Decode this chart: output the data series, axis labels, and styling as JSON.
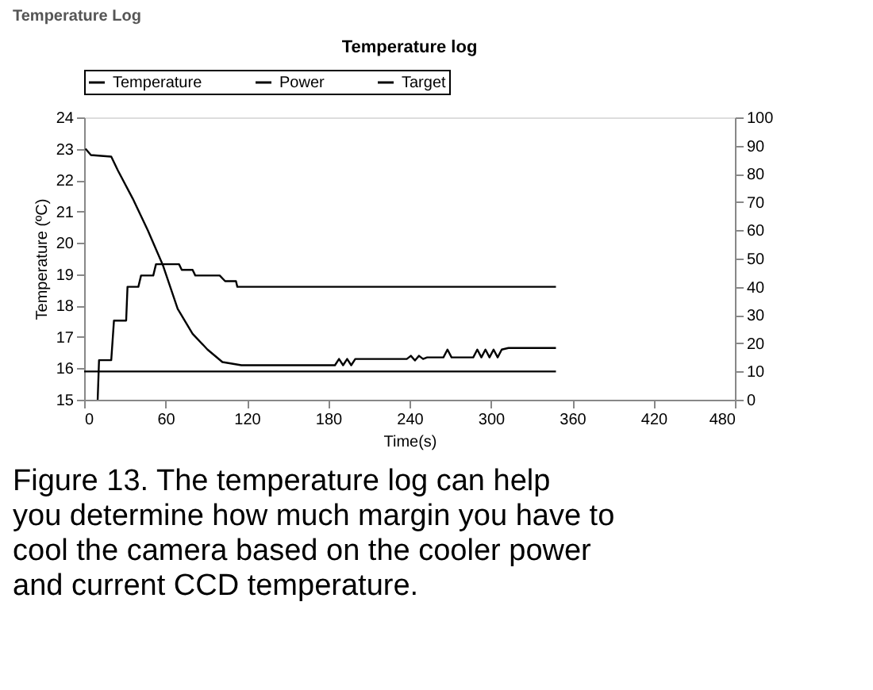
{
  "chart_data": {
    "type": "line",
    "title": "Temperature log",
    "xlabel": "Time(s)",
    "ylabel": "Temperature (ºC)",
    "annotations": [
      "Temperature Log",
      "Figure 13. The temperature log can help you determine how much margin you have to cool the camera based on the cooler power and current CCD temperature."
    ],
    "series": [
      {
        "name": "Temperature",
        "color": "#000000",
        "x": [
          1,
          5,
          20,
          25,
          36,
          47,
          58,
          69,
          80,
          91,
          102,
          116,
          185,
          188,
          191,
          194,
          197,
          200,
          203,
          238,
          241,
          244,
          247,
          250,
          253,
          265,
          268,
          271,
          287,
          290,
          293,
          296,
          299,
          302,
          305,
          308,
          313,
          348
        ],
        "values": [
          23.0,
          22.8,
          22.75,
          22.3,
          21.4,
          20.4,
          19.3,
          17.9,
          17.1,
          16.6,
          16.2,
          16.1,
          16.1,
          16.3,
          16.1,
          16.3,
          16.1,
          16.3,
          16.3,
          16.3,
          16.4,
          16.25,
          16.4,
          16.3,
          16.35,
          16.35,
          16.6,
          16.35,
          16.35,
          16.6,
          16.35,
          16.6,
          16.35,
          16.6,
          16.35,
          16.6,
          16.65,
          16.65
        ]
      },
      {
        "name": "Power",
        "color": "#000000",
        "axis": "y2",
        "x": [
          10,
          11,
          20,
          22,
          31,
          32,
          40,
          42,
          51,
          53,
          70,
          72,
          80,
          82,
          100,
          104,
          112,
          113,
          348
        ],
        "values": [
          0,
          14,
          14,
          28,
          28,
          40,
          40,
          44,
          44,
          48,
          48,
          46,
          46,
          44,
          44,
          42,
          42,
          40,
          40
        ]
      },
      {
        "name": "Target",
        "color": "#000000",
        "x": [
          0,
          348
        ],
        "values": [
          15.9,
          15.9
        ]
      }
    ],
    "xlim": [
      0,
      480
    ],
    "xticks": [
      0,
      60,
      120,
      180,
      240,
      300,
      360,
      420,
      480
    ],
    "ylim": [
      15,
      24
    ],
    "yticks": [
      15,
      16,
      17,
      18,
      19,
      20,
      21,
      22,
      23,
      24
    ],
    "y2lim": [
      0,
      100
    ],
    "y2ticks": [
      0,
      10,
      20,
      30,
      40,
      50,
      60,
      70,
      80,
      90,
      100
    ],
    "legend": "top",
    "grid": false
  }
}
